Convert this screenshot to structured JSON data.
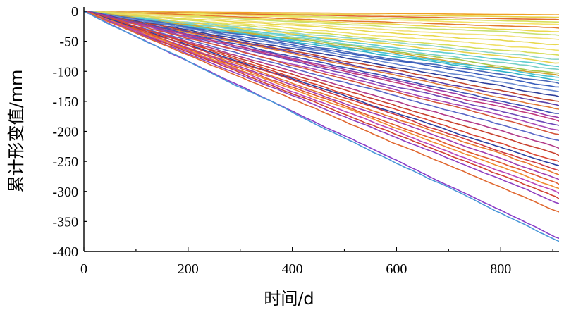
{
  "chart_data": {
    "type": "line",
    "xlabel": "时间/d",
    "ylabel": "累计形变值/mm",
    "xlim": [
      0,
      912
    ],
    "ylim": [
      -400,
      0
    ],
    "xticks": [
      0,
      200,
      400,
      600,
      800
    ],
    "yticks": [
      0,
      -50,
      -100,
      -150,
      -200,
      -250,
      -300,
      -350,
      -400
    ],
    "grid": false,
    "legend": "none",
    "series": [
      {
        "color": "#f0a020",
        "values": [
          [
            0,
            0
          ],
          [
            912,
            -6
          ]
        ]
      },
      {
        "color": "#e8d24a",
        "values": [
          [
            0,
            0
          ],
          [
            912,
            -10
          ]
        ]
      },
      {
        "color": "#e06a30",
        "values": [
          [
            0,
            0
          ],
          [
            912,
            -14
          ]
        ]
      },
      {
        "color": "#d8df5c",
        "values": [
          [
            0,
            0
          ],
          [
            912,
            -18
          ]
        ]
      },
      {
        "color": "#f5e36a",
        "values": [
          [
            0,
            0
          ],
          [
            912,
            -22
          ]
        ]
      },
      {
        "color": "#e27a2e",
        "values": [
          [
            0,
            0
          ],
          [
            912,
            -28
          ]
        ]
      },
      {
        "color": "#ecd84c",
        "values": [
          [
            0,
            0
          ],
          [
            912,
            -34
          ]
        ]
      },
      {
        "color": "#c8e070",
        "values": [
          [
            0,
            0
          ],
          [
            912,
            -40
          ]
        ]
      },
      {
        "color": "#f2e07a",
        "values": [
          [
            0,
            0
          ],
          [
            912,
            -47
          ]
        ]
      },
      {
        "color": "#e8d84e",
        "values": [
          [
            0,
            0
          ],
          [
            912,
            -55
          ]
        ]
      },
      {
        "color": "#f0e06a",
        "values": [
          [
            0,
            0
          ],
          [
            912,
            -65
          ]
        ]
      },
      {
        "color": "#d7dd5a",
        "values": [
          [
            0,
            0
          ],
          [
            912,
            -73
          ]
        ]
      },
      {
        "color": "#8fd6c8",
        "values": [
          [
            0,
            0
          ],
          [
            912,
            -80
          ]
        ]
      },
      {
        "color": "#e6d24c",
        "values": [
          [
            0,
            0
          ],
          [
            912,
            -86
          ]
        ]
      },
      {
        "color": "#5fcdd0",
        "values": [
          [
            0,
            0
          ],
          [
            912,
            -92
          ]
        ]
      },
      {
        "color": "#7ad1c6",
        "values": [
          [
            0,
            0
          ],
          [
            912,
            -97
          ]
        ]
      },
      {
        "color": "#a7c84a",
        "values": [
          [
            0,
            0
          ],
          [
            912,
            -103
          ]
        ]
      },
      {
        "color": "#d0a232",
        "values": [
          [
            0,
            0
          ],
          [
            912,
            -107
          ]
        ]
      },
      {
        "color": "#46c4d4",
        "values": [
          [
            0,
            0
          ],
          [
            912,
            -110
          ]
        ]
      },
      {
        "color": "#2fb4c8",
        "values": [
          [
            0,
            0
          ],
          [
            912,
            -115
          ]
        ]
      },
      {
        "color": "#4a67b8",
        "values": [
          [
            0,
            0
          ],
          [
            912,
            -120
          ]
        ]
      },
      {
        "color": "#3a5fbd",
        "values": [
          [
            0,
            0
          ],
          [
            912,
            -126
          ]
        ]
      },
      {
        "color": "#6a8ad0",
        "values": [
          [
            0,
            0
          ],
          [
            912,
            -134
          ]
        ]
      },
      {
        "color": "#2e3e9a",
        "values": [
          [
            0,
            0
          ],
          [
            912,
            -142
          ]
        ]
      },
      {
        "color": "#c0462e",
        "values": [
          [
            0,
            0
          ],
          [
            912,
            -150
          ]
        ]
      },
      {
        "color": "#5b3fa8",
        "values": [
          [
            0,
            0
          ],
          [
            912,
            -157
          ]
        ]
      },
      {
        "color": "#e07a36",
        "values": [
          [
            0,
            0
          ],
          [
            912,
            -163
          ]
        ]
      },
      {
        "color": "#3b4fb2",
        "values": [
          [
            0,
            0
          ],
          [
            912,
            -170
          ]
        ]
      },
      {
        "color": "#9a3aa8",
        "values": [
          [
            0,
            0
          ],
          [
            912,
            -177
          ]
        ]
      },
      {
        "color": "#c23a7a",
        "values": [
          [
            0,
            0
          ],
          [
            912,
            -183
          ]
        ]
      },
      {
        "color": "#6e49b8",
        "values": [
          [
            0,
            0
          ],
          [
            912,
            -190
          ]
        ]
      },
      {
        "color": "#a848b6",
        "values": [
          [
            0,
            0
          ],
          [
            912,
            -198
          ]
        ]
      },
      {
        "color": "#d5553a",
        "values": [
          [
            0,
            0
          ],
          [
            912,
            -205
          ]
        ]
      },
      {
        "color": "#5866c6",
        "values": [
          [
            0,
            0
          ],
          [
            912,
            -215
          ]
        ]
      },
      {
        "color": "#b23a88",
        "values": [
          [
            0,
            0
          ],
          [
            912,
            -228
          ]
        ]
      },
      {
        "color": "#c8402e",
        "values": [
          [
            0,
            0
          ],
          [
            912,
            -240
          ]
        ]
      },
      {
        "color": "#d84430",
        "values": [
          [
            0,
            0
          ],
          [
            912,
            -250
          ]
        ]
      },
      {
        "color": "#2c3fa0",
        "values": [
          [
            0,
            0
          ],
          [
            912,
            -257
          ]
        ]
      },
      {
        "color": "#cc3a40",
        "values": [
          [
            0,
            0
          ],
          [
            912,
            -265
          ]
        ]
      },
      {
        "color": "#e8762e",
        "values": [
          [
            0,
            0
          ],
          [
            912,
            -272
          ]
        ]
      },
      {
        "color": "#a23cb0",
        "values": [
          [
            0,
            0
          ],
          [
            912,
            -280
          ]
        ]
      },
      {
        "color": "#e0582e",
        "values": [
          [
            0,
            0
          ],
          [
            912,
            -288
          ]
        ]
      },
      {
        "color": "#f08a30",
        "values": [
          [
            0,
            0
          ],
          [
            912,
            -295
          ]
        ]
      },
      {
        "color": "#b846b8",
        "values": [
          [
            0,
            0
          ],
          [
            912,
            -303
          ]
        ]
      },
      {
        "color": "#d04030",
        "values": [
          [
            0,
            0
          ],
          [
            912,
            -312
          ]
        ]
      },
      {
        "color": "#9040c0",
        "values": [
          [
            0,
            0
          ],
          [
            912,
            -320
          ]
        ]
      },
      {
        "color": "#e06830",
        "values": [
          [
            0,
            0
          ],
          [
            912,
            -334
          ]
        ]
      },
      {
        "color": "#8a3cc8",
        "values": [
          [
            0,
            0
          ],
          [
            912,
            -378
          ]
        ]
      },
      {
        "color": "#4a98d8",
        "values": [
          [
            0,
            0
          ],
          [
            912,
            -383
          ]
        ]
      }
    ]
  }
}
